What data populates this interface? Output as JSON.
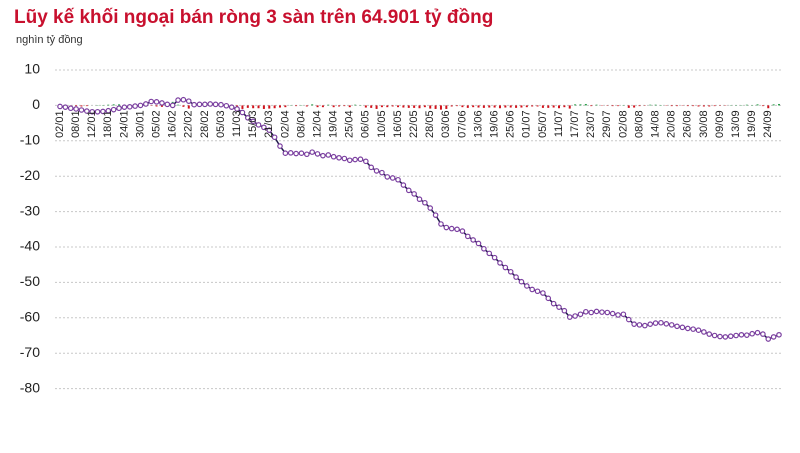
{
  "chart_data": {
    "type": "line_bar",
    "title": "Lũy kế khối ngoại bán ròng 3 sàn trên 64.901 tỷ đồng",
    "subtitle": "nghìn tỷ đồng",
    "categories": [
      "02/01",
      null,
      null,
      "08/01",
      null,
      null,
      "12/01",
      null,
      null,
      "18/01",
      null,
      null,
      "24/01",
      null,
      null,
      "30/01",
      null,
      null,
      "05/02",
      null,
      null,
      "16/02",
      null,
      null,
      "22/02",
      null,
      null,
      "28/02",
      null,
      null,
      "05/03",
      null,
      null,
      "11/03",
      null,
      null,
      "15/03",
      null,
      null,
      "21/03",
      null,
      null,
      "02/04",
      null,
      null,
      "08/04",
      null,
      null,
      "12/04",
      null,
      null,
      "19/04",
      null,
      null,
      "25/04",
      null,
      null,
      "06/05",
      null,
      null,
      "10/05",
      null,
      null,
      "16/05",
      null,
      null,
      "22/05",
      null,
      null,
      "28/05",
      null,
      null,
      "03/06",
      null,
      null,
      "07/06",
      null,
      null,
      "13/06",
      null,
      null,
      "19/06",
      null,
      null,
      "25/06",
      null,
      null,
      "01/07",
      null,
      null,
      "05/07",
      null,
      null,
      "11/07",
      null,
      null,
      "17/07",
      null,
      null,
      "23/07",
      null,
      null,
      "29/07",
      null,
      null,
      "02/08",
      null,
      null,
      "08/08",
      null,
      null,
      "14/08",
      null,
      null,
      "20/08",
      null,
      null,
      "26/08",
      null,
      null,
      "30/08",
      null,
      null,
      "09/09",
      null,
      null,
      "13/09",
      null,
      null,
      "19/09",
      null,
      null,
      "24/09",
      null,
      null
    ],
    "series": [
      {
        "kind": "line",
        "color": "#1f1a4a",
        "marker_color": "#7b3fa0",
        "values": [
          -0.3,
          -0.5,
          -0.8,
          -1.0,
          -1.3,
          -1.6,
          -1.8,
          -1.8,
          -1.7,
          -1.5,
          -1.2,
          -0.8,
          -0.5,
          -0.4,
          -0.2,
          0,
          0.4,
          1.1,
          1.0,
          0.7,
          0.3,
          0,
          1.5,
          1.6,
          1.2,
          0.2,
          0.3,
          0.3,
          0.4,
          0.3,
          0.2,
          -0.1,
          -0.5,
          -1.0,
          -2.0,
          -3.5,
          -4.5,
          -5.5,
          -6.2,
          -7.0,
          -9.0,
          -11.5,
          -13.5,
          -13.4,
          -13.6,
          -13.5,
          -13.8,
          -13.2,
          -13.7,
          -14.2,
          -14.0,
          -14.5,
          -14.8,
          -15.0,
          -15.5,
          -15.3,
          -15.2,
          -15.8,
          -17.5,
          -18.5,
          -19,
          -20.2,
          -20.5,
          -21,
          -22.5,
          -24,
          -25,
          -26.5,
          -27.5,
          -29,
          -31,
          -33.5,
          -34.5,
          -34.8,
          -35,
          -35.5,
          -37,
          -38,
          -39,
          -40.5,
          -41.8,
          -43,
          -44.5,
          -45.8,
          -47,
          -48.5,
          -49.8,
          -51,
          -52,
          -52.5,
          -53,
          -54.5,
          -56,
          -57,
          -58,
          -59.8,
          -59.5,
          -59,
          -58.3,
          -58.5,
          -58.2,
          -58.4,
          -58.5,
          -58.8,
          -59.2,
          -59,
          -60.5,
          -61.8,
          -62,
          -62.2,
          -61.8,
          -61.5,
          -61.4,
          -61.7,
          -62,
          -62.4,
          -62.7,
          -63,
          -63.2,
          -63.5,
          -64,
          -64.6,
          -65,
          -65.3,
          -65.4,
          -65.2,
          -65,
          -64.8,
          -64.9,
          -64.5,
          -64.2,
          -64.6,
          -66,
          -65.4,
          -64.8
        ]
      },
      {
        "kind": "bar",
        "color": "#2a9d4a",
        "negative_color": "#d0121b",
        "values": [
          -0.1,
          -0.2,
          -0.2,
          -0.2,
          -0.3,
          -0.2,
          0,
          0.1,
          0.1,
          0.2,
          0.3,
          0.3,
          0.1,
          0.2,
          0.2,
          0.4,
          0.6,
          -0.1,
          -0.3,
          -0.4,
          -0.3,
          1.0,
          0.2,
          -0.4,
          -0.9,
          0.1,
          0.1,
          0.1,
          -0.1,
          -0.1,
          -0.3,
          -0.4,
          -0.5,
          -1.0,
          -1.0,
          -0.7,
          -0.8,
          -0.8,
          -1.0,
          -0.9,
          -0.8,
          -0.6,
          -0.5,
          0.1,
          -0.2,
          0.1,
          -0.3,
          0.3,
          -0.5,
          -0.5,
          0.2,
          -0.5,
          -0.3,
          -0.2,
          -0.5,
          0.2,
          0.1,
          -0.6,
          -0.7,
          -1.0,
          -0.5,
          -0.5,
          -0.3,
          -0.5,
          -0.6,
          -0.7,
          -0.7,
          -0.8,
          -0.5,
          -0.9,
          -1.0,
          -1.2,
          -1.0,
          -0.3,
          -0.2,
          -0.5,
          -0.7,
          -0.5,
          -0.6,
          -0.7,
          -0.6,
          -0.6,
          -0.8,
          -0.6,
          -0.6,
          -0.7,
          -0.6,
          -0.5,
          -0.3,
          -0.3,
          -0.7,
          -0.7,
          -0.6,
          -0.8,
          -0.5,
          -0.9,
          0.3,
          0.3,
          0.4,
          -0.2,
          0.2,
          -0.1,
          -0.1,
          -0.2,
          -0.2,
          0.1,
          -0.7,
          -0.6,
          -0.2,
          -0.1,
          0.2,
          0.2,
          0.1,
          -0.1,
          -0.2,
          -0.2,
          -0.1,
          -0.2,
          -0.2,
          -0.3,
          -0.3,
          -0.3,
          -0.2,
          -0.1,
          -0.1,
          0.1,
          0.1,
          0.1,
          0.2,
          0.1,
          0.3,
          -0.2,
          -0.8,
          0.3,
          0.4
        ]
      }
    ],
    "ylim": [
      -85,
      12
    ],
    "yticks": [
      10,
      0,
      -10,
      -20,
      -30,
      -40,
      -50,
      -60,
      -70,
      -80
    ],
    "grid": true
  }
}
